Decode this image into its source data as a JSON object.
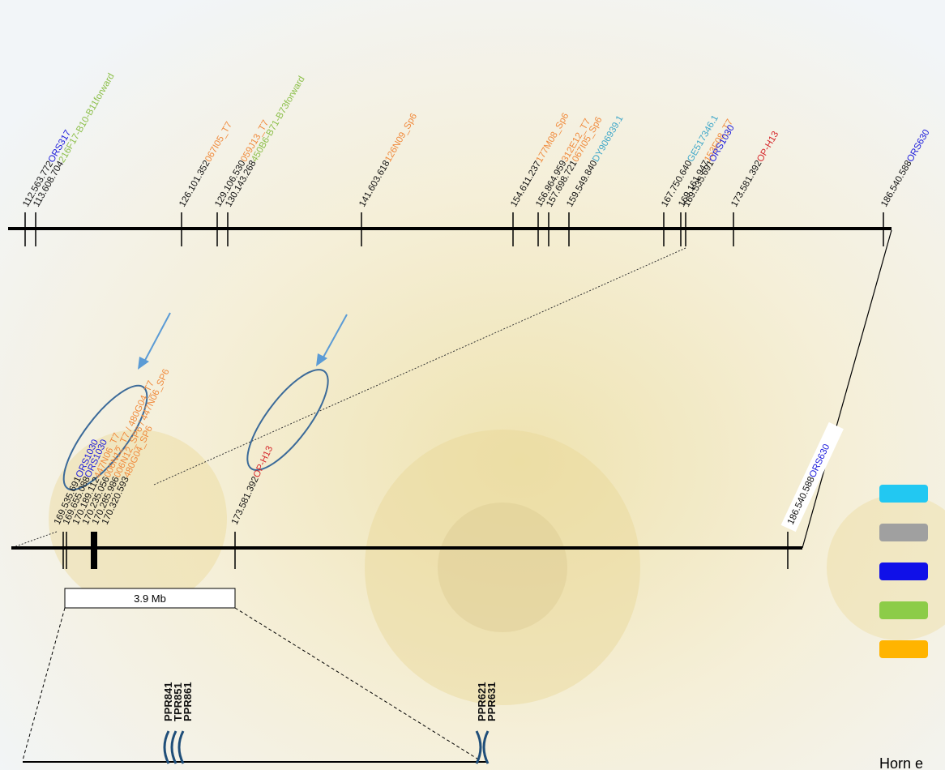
{
  "top_track": {
    "markers": [
      {
        "position": "112.563.772",
        "name": "ORS317",
        "color": "#1a1adc"
      },
      {
        "position": "113.608.704",
        "name": "216F17-B10-B11forward",
        "color": "#8cbf4a"
      },
      {
        "position": "126.101.352",
        "name": "067I05_T7",
        "color": "#f08a3c"
      },
      {
        "position": "129.106.530",
        "name": "059J13_T7",
        "color": "#f08a3c"
      },
      {
        "position": "130.143.268",
        "name": "450B6-B71-B73forward",
        "color": "#8cbf4a"
      },
      {
        "position": "141.603.618",
        "name": "126N09_Sp6",
        "color": "#f08a3c"
      },
      {
        "position": "154.611.237",
        "name": "177M08_Sp6",
        "color": "#f08a3c"
      },
      {
        "position": "156.864.959",
        "name": "312E12_T7",
        "color": "#f08a3c"
      },
      {
        "position": "157.698.721",
        "name": "067I05_Sp6",
        "color": "#f08a3c"
      },
      {
        "position": "159.549.840",
        "name": "DY906939.1",
        "color": "#3fa7c9"
      },
      {
        "position": "167.750.640",
        "name": "GE517346.1",
        "color": "#3fa7c9"
      },
      {
        "position": "169.161.947",
        "name": "153F08_T7",
        "color": "#f08a3c"
      },
      {
        "position": "169.535.691",
        "name": "ORS1030",
        "color": "#1a1adc"
      },
      {
        "position": "173.581.392",
        "name": "OP-H13",
        "color": "#d6282c"
      },
      {
        "position": "186.540.588",
        "name": "ORS630",
        "color": "#1a1adc"
      }
    ]
  },
  "middle_track": {
    "markers": [
      {
        "position": "169.535.691",
        "name": "ORS1030",
        "color": "#1a1adc"
      },
      {
        "position": "169.655.088",
        "name": "ORS1030",
        "color": "#1a1adc"
      },
      {
        "position": "170.189.112",
        "name": "447N06_T7",
        "color": "#f08a3c"
      },
      {
        "position": "170.235.056",
        "name": "006N12_T7 / 480G04_T7",
        "color": "#f08a3c"
      },
      {
        "position": "170.285.986",
        "name": "006N12_SP6 / 447N06_SP6",
        "color": "#f08a3c"
      },
      {
        "position": "170.320.593",
        "name": "480G04_SP6",
        "color": "#f08a3c"
      },
      {
        "position": "173.581.392",
        "name": "OP-H13",
        "color": "#d6282c"
      },
      {
        "position": "186.540.588",
        "name": "ORS630",
        "color": "#1a1adc"
      }
    ]
  },
  "scale_bar": "3.9 Mb",
  "genes": {
    "left": [
      "PPR841",
      "TPR851",
      "PPR861"
    ],
    "right": [
      "PPR621",
      "PPR631"
    ]
  },
  "legend_colors": [
    "#22c8f2",
    "#a0a0a0",
    "#1010e8",
    "#8ccc48",
    "#ffb400"
  ],
  "footer": "Horn e"
}
